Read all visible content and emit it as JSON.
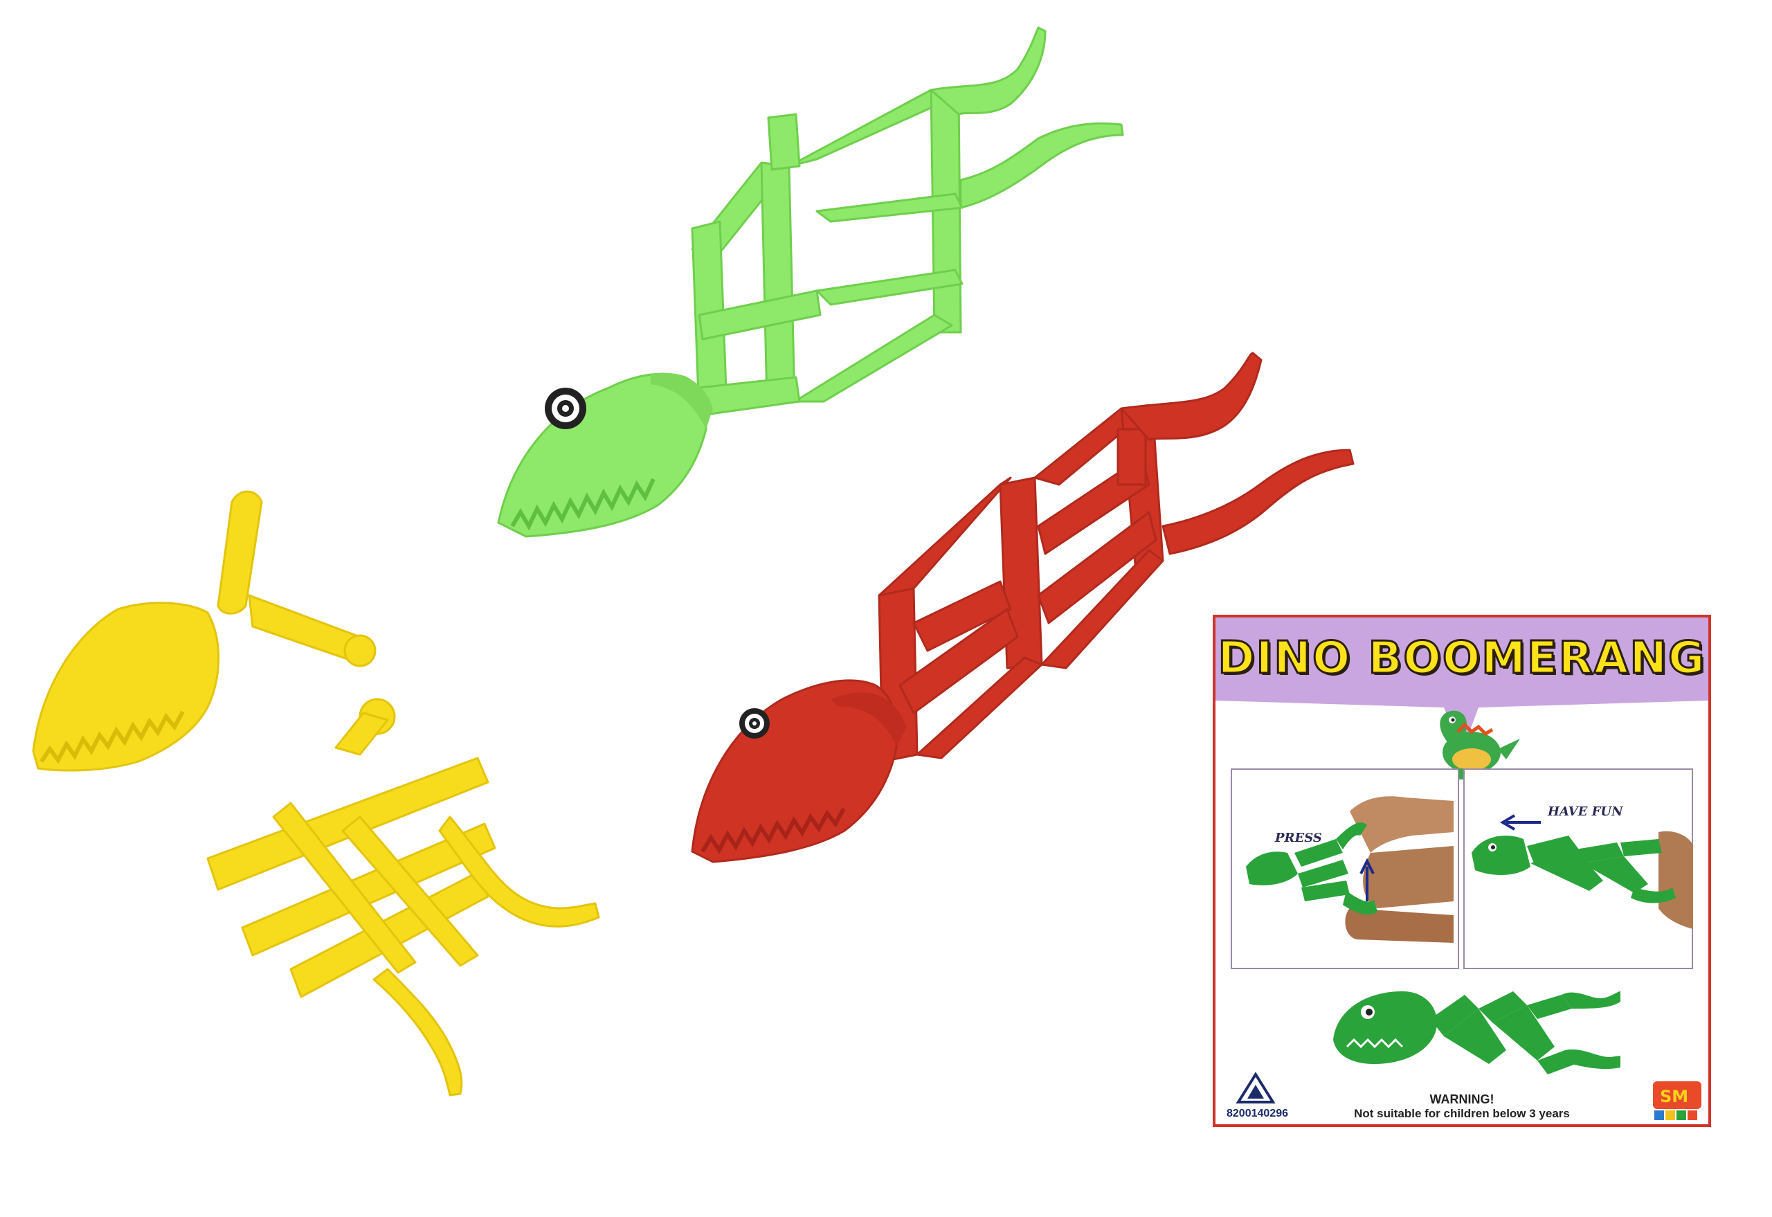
{
  "card": {
    "title": "DINO BOOMERANG",
    "press_label": "PRESS",
    "have_fun_label": "HAVE FUN",
    "warning_title": "WARNING!",
    "warning_text": "Not suitable for children below 3 years",
    "code": "8200140296"
  },
  "colors": {
    "green_toy": "#8ee86a",
    "red_toy": "#cf3324",
    "yellow_toy": "#f6dc1c",
    "card_border": "#d0342c",
    "banner": "#c9a6e0",
    "title_fill": "#ffe21a",
    "dino_green": "#2aa33a"
  },
  "icons": {
    "cert_mark": "isi-triangle-icon",
    "brand_logo": "sm-toys-logo"
  }
}
